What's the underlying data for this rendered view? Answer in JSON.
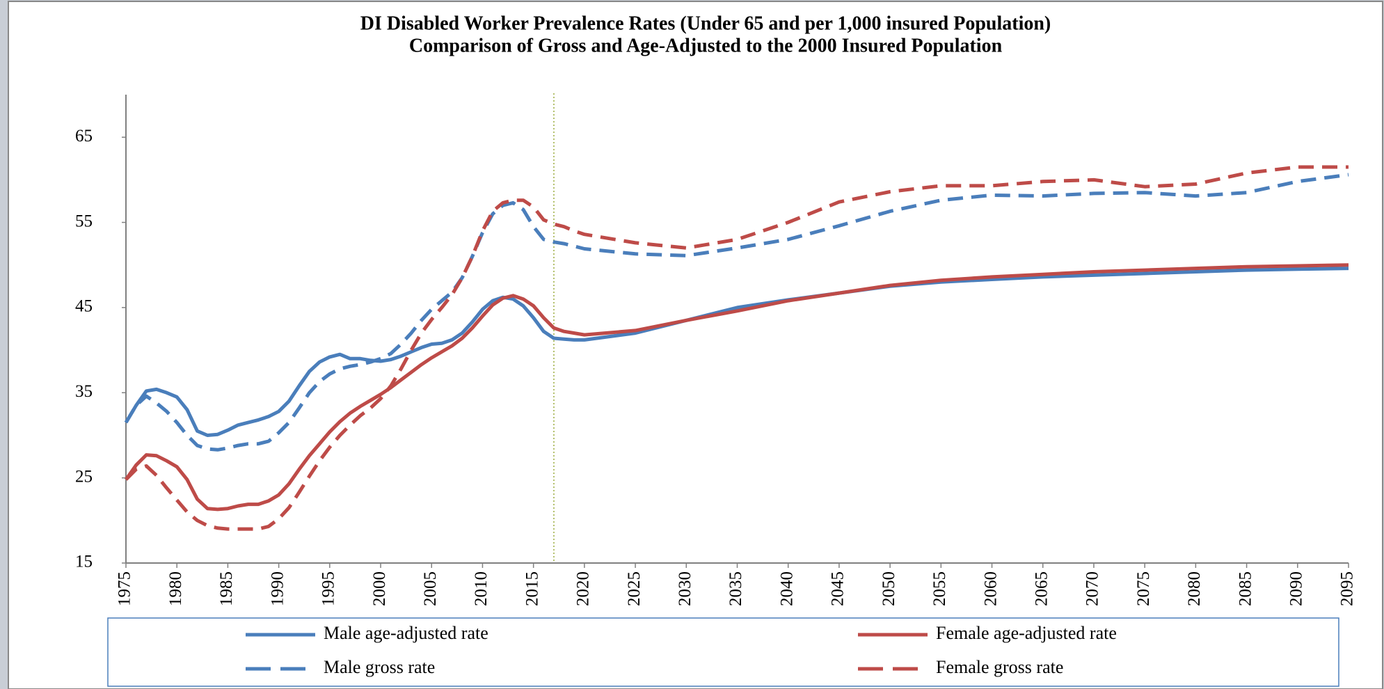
{
  "chart_data": {
    "type": "line",
    "title": "DI Disabled Worker Prevalence Rates (Under 65 and per 1,000 insured Population)",
    "subtitle": "Comparison of Gross and Age-Adjusted to the 2000 Insured Population",
    "x": [
      1975,
      1976,
      1977,
      1978,
      1979,
      1980,
      1981,
      1982,
      1983,
      1984,
      1985,
      1986,
      1987,
      1988,
      1989,
      1990,
      1991,
      1992,
      1993,
      1994,
      1995,
      1996,
      1997,
      1998,
      1999,
      2000,
      2001,
      2002,
      2003,
      2004,
      2005,
      2006,
      2007,
      2008,
      2009,
      2010,
      2011,
      2012,
      2013,
      2014,
      2015,
      2016,
      2017,
      2018,
      2019,
      2020,
      2025,
      2030,
      2035,
      2040,
      2045,
      2050,
      2055,
      2060,
      2065,
      2070,
      2075,
      2080,
      2085,
      2090,
      2095
    ],
    "series": [
      {
        "name": "Male age-adjusted rate",
        "color": "#4a7ebb",
        "dashed": false,
        "values": [
          31.5,
          33.5,
          35.2,
          35.4,
          35.0,
          34.5,
          33.0,
          30.5,
          30.0,
          30.1,
          30.6,
          31.2,
          31.5,
          31.8,
          32.2,
          32.8,
          34.0,
          35.8,
          37.5,
          38.6,
          39.2,
          39.5,
          39.0,
          39.0,
          38.8,
          38.7,
          38.9,
          39.3,
          39.8,
          40.3,
          40.7,
          40.8,
          41.2,
          42.0,
          43.3,
          44.8,
          45.8,
          46.2,
          46.0,
          45.2,
          43.8,
          42.2,
          41.4,
          41.3,
          41.2,
          41.2,
          42.0,
          43.5,
          45.0,
          45.9,
          46.7,
          47.5,
          48.0,
          48.3,
          48.6,
          48.8,
          49.0,
          49.2,
          49.4,
          49.5,
          49.6
        ]
      },
      {
        "name": "Female age-adjusted rate",
        "color": "#be4b48",
        "dashed": false,
        "values": [
          24.8,
          26.5,
          27.7,
          27.6,
          27.0,
          26.3,
          24.8,
          22.5,
          21.4,
          21.3,
          21.4,
          21.7,
          21.9,
          21.9,
          22.3,
          23.0,
          24.3,
          26.0,
          27.6,
          29.0,
          30.4,
          31.6,
          32.6,
          33.4,
          34.1,
          34.8,
          35.6,
          36.5,
          37.4,
          38.3,
          39.1,
          39.8,
          40.5,
          41.4,
          42.6,
          44.0,
          45.3,
          46.1,
          46.4,
          46.0,
          45.2,
          43.8,
          42.6,
          42.2,
          42.0,
          41.8,
          42.3,
          43.5,
          44.6,
          45.8,
          46.7,
          47.6,
          48.2,
          48.6,
          48.9,
          49.2,
          49.4,
          49.6,
          49.8,
          49.9,
          50.0
        ]
      },
      {
        "name": "Male gross rate",
        "color": "#4a7ebb",
        "dashed": true,
        "values": [
          31.5,
          33.5,
          34.6,
          33.8,
          32.8,
          31.5,
          30.0,
          28.8,
          28.4,
          28.3,
          28.5,
          28.8,
          29.0,
          29.0,
          29.3,
          30.3,
          31.5,
          33.2,
          35.0,
          36.3,
          37.2,
          37.8,
          38.1,
          38.3,
          38.6,
          39.0,
          39.6,
          40.7,
          42.0,
          43.5,
          44.8,
          45.8,
          46.8,
          48.5,
          51.0,
          53.8,
          56.0,
          57.0,
          57.3,
          56.5,
          54.5,
          53.0,
          52.7,
          52.5,
          52.2,
          51.9,
          51.3,
          51.1,
          52.0,
          53.0,
          54.6,
          56.3,
          57.6,
          58.2,
          58.1,
          58.4,
          58.5,
          58.1,
          58.5,
          59.8,
          60.6
        ]
      },
      {
        "name": "Female gross rate",
        "color": "#be4b48",
        "dashed": true,
        "values": [
          24.8,
          26.0,
          26.4,
          25.3,
          23.8,
          22.4,
          21.0,
          20.0,
          19.4,
          19.1,
          19.0,
          19.0,
          19.0,
          19.0,
          19.3,
          20.2,
          21.5,
          23.3,
          25.2,
          27.0,
          28.6,
          30.0,
          31.2,
          32.3,
          33.2,
          34.3,
          35.8,
          37.8,
          40.0,
          42.0,
          43.6,
          45.0,
          46.5,
          48.5,
          51.0,
          54.0,
          56.3,
          57.3,
          57.6,
          57.6,
          56.8,
          55.3,
          54.8,
          54.5,
          54.0,
          53.6,
          52.6,
          52.0,
          53.0,
          55.0,
          57.4,
          58.6,
          59.3,
          59.3,
          59.8,
          60.0,
          59.2,
          59.5,
          60.8,
          61.5,
          61.5
        ]
      }
    ],
    "xlim": [
      1975,
      2095
    ],
    "xticks": [
      1975,
      1980,
      1985,
      1990,
      1995,
      2000,
      2005,
      2010,
      2015,
      2020,
      2025,
      2030,
      2035,
      2040,
      2045,
      2050,
      2055,
      2060,
      2065,
      2070,
      2075,
      2080,
      2085,
      2090,
      2095
    ],
    "ylim": [
      15,
      70
    ],
    "yticks": [
      15,
      25,
      35,
      45,
      55,
      65
    ],
    "grid": false
  }
}
